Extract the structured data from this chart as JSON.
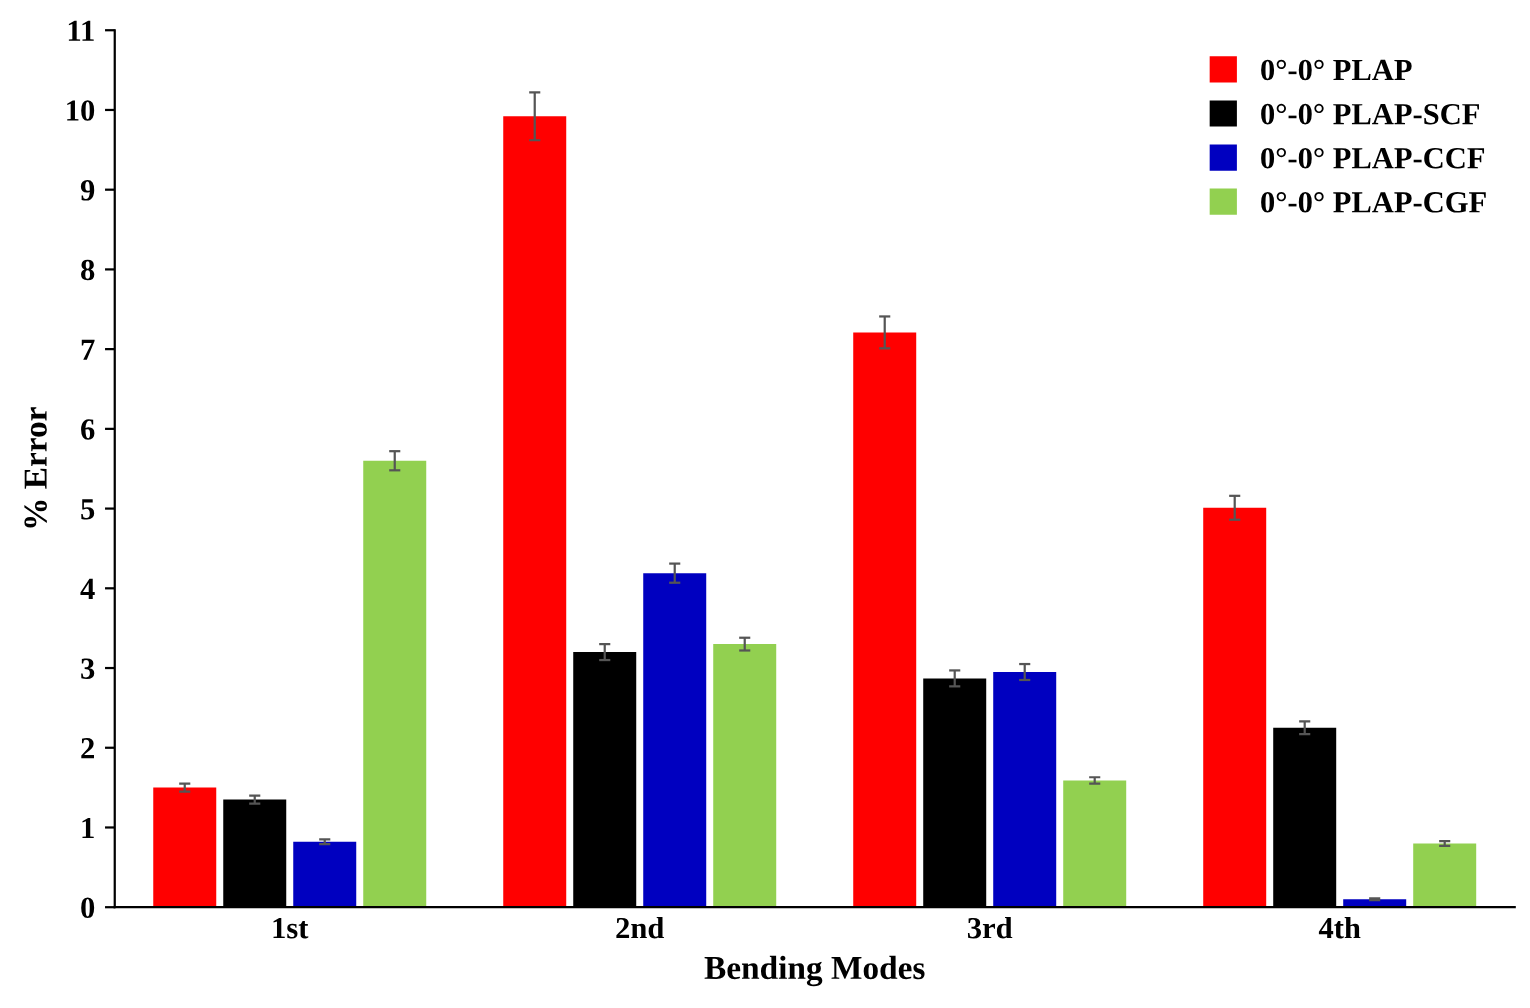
{
  "chart_data": {
    "type": "bar",
    "xlabel": "Bending Modes",
    "ylabel": "% Error",
    "categories": [
      "1st",
      "2nd",
      "3rd",
      "4th"
    ],
    "series": [
      {
        "name": "0°-0° PLAP",
        "color": "#ff0000",
        "values": [
          1.5,
          9.92,
          7.21,
          5.01
        ],
        "errors": [
          0.05,
          0.3,
          0.2,
          0.15
        ]
      },
      {
        "name": "0°-0° PLAP-SCF",
        "color": "#000000",
        "values": [
          1.35,
          3.2,
          2.87,
          2.25
        ],
        "errors": [
          0.05,
          0.1,
          0.1,
          0.08
        ]
      },
      {
        "name": "0°-0° PLAP-CCF",
        "color": "#0000c0",
        "values": [
          0.82,
          4.19,
          2.95,
          0.1
        ],
        "errors": [
          0.03,
          0.12,
          0.1,
          0.01
        ]
      },
      {
        "name": "0°-0° PLAP-CGF",
        "color": "#92d050",
        "values": [
          5.6,
          3.3,
          1.59,
          0.8
        ],
        "errors": [
          0.12,
          0.08,
          0.04,
          0.03
        ]
      }
    ],
    "ylim": [
      0,
      11
    ],
    "yticks": [
      0,
      1,
      2,
      3,
      4,
      5,
      6,
      7,
      8,
      9,
      10,
      11
    ],
    "grid": false,
    "legend": "top right"
  }
}
